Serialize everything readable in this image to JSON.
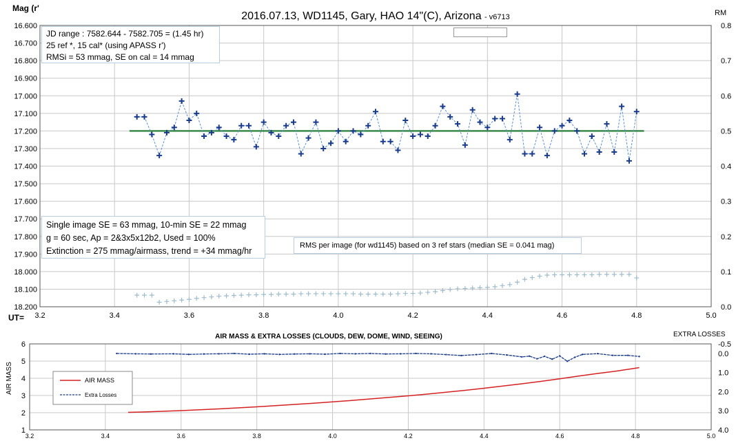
{
  "chart_data": [
    {
      "type": "scatter",
      "title": "2016.07.13,  WD1145, Gary, HAO  14\"(C), Arizona",
      "version": "- v6713",
      "ylabel": "Mag (r'",
      "y2label": "RM",
      "xlabel": "UT=",
      "xlim": [
        3.2,
        5.0
      ],
      "ylim": [
        16.6,
        18.2
      ],
      "y_reversed": true,
      "y2lim": [
        0.0,
        0.8
      ],
      "x_ticks": [
        "3.2",
        "3.4",
        "3.6",
        "3.8",
        "4.0",
        "4.2",
        "4.4",
        "4.6",
        "4.8",
        "5.0"
      ],
      "y_ticks": [
        "16.600",
        "16.700",
        "16.800",
        "16.900",
        "17.000",
        "17.100",
        "17.200",
        "17.300",
        "17.400",
        "17.500",
        "17.600",
        "17.700",
        "17.800",
        "17.900",
        "18.000",
        "18.100",
        "18.200"
      ],
      "y2_ticks": [
        "0.8",
        "0.7",
        "0.6",
        "0.5",
        "0.4",
        "0.3",
        "0.2",
        "0.1",
        "0.0"
      ],
      "grid": true,
      "info_box_top": [
        "JD range  : 7582.644 - 7582.705  = (1.45 hr)",
        "  25 ref *, 15 cal* (using APASS r')",
        "RMSi = 53 mmag, SE on cal = 14 mmag"
      ],
      "info_box_bottom": [
        "Single image SE = 63 mmag, 10-min SE = 22 mmag",
        "g = 60 sec, Ap = 2&3x5x12b2,  Used = 100%",
        "Extinction = 275 mmag/airmass, trend = +34 mmag/hr"
      ],
      "rms_note": "RMS per image (for wd1145) based on 3 ref stars (median SE = 0.041 mag)",
      "reference_level": {
        "y": 17.2,
        "x_start": 3.44,
        "x_end": 4.82,
        "color": "#3a8a4a"
      },
      "series": [
        {
          "color": "#1a3a8a",
          "x": [
            3.46,
            3.48,
            3.5,
            3.52,
            3.54,
            3.56,
            3.58,
            3.6,
            3.62,
            3.64,
            3.66,
            3.68,
            3.7,
            3.72,
            3.74,
            3.76,
            3.78,
            3.8,
            3.82,
            3.84,
            3.86,
            3.88,
            3.9,
            3.92,
            3.94,
            3.96,
            3.98,
            4.0,
            4.02,
            4.04,
            4.06,
            4.08,
            4.1,
            4.12,
            4.14,
            4.16,
            4.18,
            4.2,
            4.22,
            4.24,
            4.26,
            4.28,
            4.3,
            4.32,
            4.34,
            4.36,
            4.38,
            4.4,
            4.42,
            4.44,
            4.46,
            4.48,
            4.5,
            4.52,
            4.54,
            4.56,
            4.58,
            4.6,
            4.62,
            4.64,
            4.66,
            4.68,
            4.7,
            4.72,
            4.74,
            4.76,
            4.78,
            4.8
          ],
          "y": [
            17.12,
            17.12,
            17.22,
            17.34,
            17.21,
            17.18,
            17.03,
            17.14,
            17.1,
            17.23,
            17.21,
            17.18,
            17.23,
            17.25,
            17.17,
            17.17,
            17.29,
            17.15,
            17.21,
            17.23,
            17.17,
            17.15,
            17.33,
            17.24,
            17.15,
            17.3,
            17.27,
            17.2,
            17.26,
            17.2,
            17.22,
            17.17,
            17.09,
            17.26,
            17.26,
            17.31,
            17.14,
            17.23,
            17.22,
            17.23,
            17.17,
            17.06,
            17.12,
            17.16,
            17.28,
            17.08,
            17.15,
            17.18,
            17.13,
            17.13,
            17.25,
            16.99,
            17.33,
            17.33,
            17.18,
            17.34,
            17.2,
            17.17,
            17.14,
            17.2,
            17.33,
            17.23,
            17.32,
            17.16,
            17.32,
            17.06,
            17.37,
            17.09
          ]
        },
        {
          "name": "RMS per image",
          "axis": "right",
          "color": "#9fbccb",
          "x": [
            3.46,
            3.48,
            3.5,
            3.52,
            3.54,
            3.56,
            3.58,
            3.6,
            3.62,
            3.64,
            3.66,
            3.68,
            3.7,
            3.72,
            3.74,
            3.76,
            3.78,
            3.8,
            3.82,
            3.84,
            3.86,
            3.88,
            3.9,
            3.92,
            3.94,
            3.96,
            3.98,
            4.0,
            4.02,
            4.04,
            4.06,
            4.08,
            4.1,
            4.12,
            4.14,
            4.16,
            4.18,
            4.2,
            4.22,
            4.24,
            4.26,
            4.28,
            4.3,
            4.32,
            4.34,
            4.36,
            4.38,
            4.4,
            4.42,
            4.44,
            4.46,
            4.48,
            4.5,
            4.52,
            4.54,
            4.56,
            4.58,
            4.6,
            4.62,
            4.64,
            4.66,
            4.68,
            4.7,
            4.72,
            4.74,
            4.76,
            4.78,
            4.8
          ],
          "y": [
            0.033,
            0.033,
            0.033,
            0.013,
            0.015,
            0.017,
            0.019,
            0.021,
            0.024,
            0.026,
            0.028,
            0.03,
            0.031,
            0.032,
            0.033,
            0.034,
            0.034,
            0.035,
            0.035,
            0.036,
            0.036,
            0.036,
            0.037,
            0.037,
            0.037,
            0.037,
            0.037,
            0.037,
            0.037,
            0.037,
            0.036,
            0.036,
            0.036,
            0.036,
            0.036,
            0.037,
            0.038,
            0.038,
            0.039,
            0.041,
            0.043,
            0.046,
            0.049,
            0.051,
            0.052,
            0.053,
            0.054,
            0.055,
            0.057,
            0.06,
            0.063,
            0.07,
            0.078,
            0.083,
            0.087,
            0.09,
            0.091,
            0.091,
            0.091,
            0.091,
            0.091,
            0.091,
            0.092,
            0.092,
            0.092,
            0.092,
            0.092,
            0.082
          ]
        }
      ]
    },
    {
      "type": "line",
      "title": "AIR MASS & EXTRA LOSSES (CLOUDS, DEW, DOME, WIND, SEEING)",
      "ylabel": "AIR MASS",
      "y2label": "EXTRA LOSSES",
      "xlim": [
        3.2,
        5.0
      ],
      "ylim": [
        1,
        6
      ],
      "y2lim": [
        -0.5,
        4.0
      ],
      "y2_reversed": true,
      "x_ticks": [
        "3.2",
        "3.4",
        "3.6",
        "3.8",
        "4.0",
        "4.2",
        "4.4",
        "4.6",
        "4.8",
        "5.0"
      ],
      "y_ticks": [
        "6",
        "5",
        "4",
        "3",
        "2",
        "1"
      ],
      "y2_ticks": [
        "-0.5",
        "0.0",
        "1.0",
        "2.0",
        "3.0",
        "4.0"
      ],
      "grid": true,
      "legend_position": "left",
      "series": [
        {
          "name": "AIR MASS",
          "color": "#d62020",
          "x": [
            3.46,
            3.5,
            3.55,
            3.6,
            3.65,
            3.7,
            3.75,
            3.8,
            3.85,
            3.9,
            3.95,
            4.0,
            4.05,
            4.1,
            4.15,
            4.2,
            4.25,
            4.3,
            4.35,
            4.4,
            4.45,
            4.5,
            4.55,
            4.6,
            4.65,
            4.7,
            4.75,
            4.81
          ],
          "values": [
            2.02,
            2.04,
            2.08,
            2.12,
            2.17,
            2.22,
            2.28,
            2.34,
            2.41,
            2.48,
            2.55,
            2.63,
            2.71,
            2.8,
            2.89,
            2.98,
            3.08,
            3.19,
            3.3,
            3.42,
            3.55,
            3.68,
            3.82,
            3.97,
            4.13,
            4.28,
            4.42,
            4.62
          ]
        },
        {
          "name": "Extra Losses",
          "axis": "right",
          "color": "#1a3a8a",
          "x": [
            3.43,
            3.48,
            3.52,
            3.58,
            3.62,
            3.66,
            3.7,
            3.74,
            3.78,
            3.82,
            3.86,
            3.9,
            3.94,
            3.98,
            4.02,
            4.06,
            4.1,
            4.14,
            4.18,
            4.22,
            4.26,
            4.3,
            4.34,
            4.38,
            4.42,
            4.46,
            4.5,
            4.52,
            4.54,
            4.56,
            4.58,
            4.6,
            4.62,
            4.64,
            4.66,
            4.7,
            4.74,
            4.78,
            4.81
          ],
          "values": [
            0.0,
            0.02,
            0.03,
            0.02,
            0.05,
            0.03,
            0.02,
            0.0,
            0.04,
            0.02,
            0.05,
            0.03,
            0.02,
            0.04,
            0.0,
            0.02,
            0.0,
            0.03,
            0.02,
            0.0,
            0.02,
            0.06,
            0.11,
            0.06,
            0.0,
            0.08,
            0.18,
            0.14,
            0.28,
            0.15,
            0.3,
            0.13,
            0.41,
            0.2,
            0.05,
            0.01,
            0.1,
            0.1,
            0.16
          ]
        }
      ]
    }
  ]
}
